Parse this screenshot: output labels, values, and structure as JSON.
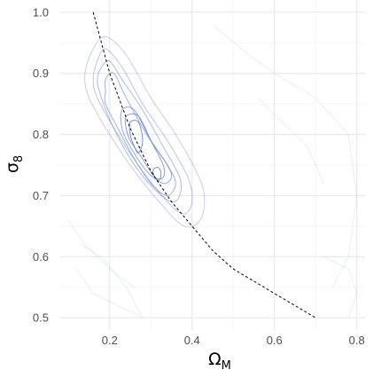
{
  "chart_data": {
    "type": "contour",
    "xlabel": "Ω",
    "xlabel_sub": "M",
    "ylabel": "σ",
    "ylabel_sub": "8",
    "xlim": [
      0.08,
      0.82
    ],
    "ylim": [
      0.48,
      1.02
    ],
    "xticks": [
      0.2,
      0.4,
      0.6,
      0.8
    ],
    "xtick_labels": [
      "0.2",
      "0.4",
      "0.6",
      "0.8"
    ],
    "yticks": [
      0.5,
      0.6,
      0.7,
      0.8,
      0.9,
      1.0
    ],
    "ytick_labels": [
      "0.5",
      "0.6",
      "0.7",
      "0.8",
      "0.9",
      "1.0"
    ],
    "grid": true,
    "colors": {
      "grid_major": "#ebebeb",
      "grid_minor": "#f5f5f5",
      "contour": "#6a85d6",
      "curve": "#000000"
    },
    "contours": [
      {
        "level": 1,
        "points": [
          [
            0.16,
            0.94
          ],
          [
            0.19,
            0.96
          ],
          [
            0.24,
            0.93
          ],
          [
            0.3,
            0.86
          ],
          [
            0.36,
            0.8
          ],
          [
            0.41,
            0.74
          ],
          [
            0.43,
            0.7
          ],
          [
            0.42,
            0.66
          ],
          [
            0.38,
            0.65
          ],
          [
            0.32,
            0.69
          ],
          [
            0.26,
            0.74
          ],
          [
            0.2,
            0.8
          ],
          [
            0.15,
            0.86
          ],
          [
            0.14,
            0.9
          ]
        ]
      },
      {
        "level": 2,
        "points": [
          [
            0.17,
            0.92
          ],
          [
            0.19,
            0.94
          ],
          [
            0.23,
            0.91
          ],
          [
            0.28,
            0.85
          ],
          [
            0.34,
            0.79
          ],
          [
            0.39,
            0.73
          ],
          [
            0.4,
            0.69
          ],
          [
            0.38,
            0.67
          ],
          [
            0.34,
            0.69
          ],
          [
            0.28,
            0.74
          ],
          [
            0.22,
            0.8
          ],
          [
            0.17,
            0.86
          ],
          [
            0.16,
            0.89
          ]
        ]
      },
      {
        "level": 3,
        "points": [
          [
            0.18,
            0.91
          ],
          [
            0.2,
            0.92
          ],
          [
            0.23,
            0.89
          ],
          [
            0.28,
            0.84
          ],
          [
            0.33,
            0.78
          ],
          [
            0.37,
            0.73
          ],
          [
            0.37,
            0.7
          ],
          [
            0.35,
            0.69
          ],
          [
            0.31,
            0.71
          ],
          [
            0.26,
            0.75
          ],
          [
            0.21,
            0.81
          ],
          [
            0.18,
            0.86
          ],
          [
            0.17,
            0.89
          ]
        ]
      },
      {
        "level": 4,
        "points": [
          [
            0.19,
            0.89
          ],
          [
            0.21,
            0.9
          ],
          [
            0.24,
            0.86
          ],
          [
            0.29,
            0.8
          ],
          [
            0.34,
            0.75
          ],
          [
            0.36,
            0.72
          ],
          [
            0.34,
            0.7
          ],
          [
            0.3,
            0.72
          ],
          [
            0.26,
            0.76
          ],
          [
            0.22,
            0.81
          ],
          [
            0.19,
            0.85
          ],
          [
            0.19,
            0.87
          ]
        ]
      },
      {
        "level": 5,
        "points": [
          [
            0.23,
            0.84
          ],
          [
            0.26,
            0.84
          ],
          [
            0.3,
            0.79
          ],
          [
            0.34,
            0.75
          ],
          [
            0.35,
            0.73
          ],
          [
            0.33,
            0.72
          ],
          [
            0.29,
            0.74
          ],
          [
            0.25,
            0.78
          ],
          [
            0.23,
            0.81
          ]
        ]
      },
      {
        "level": 6,
        "points": [
          [
            0.24,
            0.83
          ],
          [
            0.27,
            0.83
          ],
          [
            0.3,
            0.79
          ],
          [
            0.33,
            0.75
          ],
          [
            0.33,
            0.73
          ],
          [
            0.31,
            0.73
          ],
          [
            0.28,
            0.76
          ],
          [
            0.25,
            0.79
          ],
          [
            0.24,
            0.81
          ]
        ]
      },
      {
        "level": 7,
        "points": [
          [
            0.25,
            0.82
          ],
          [
            0.27,
            0.82
          ],
          [
            0.28,
            0.79
          ],
          [
            0.27,
            0.77
          ],
          [
            0.26,
            0.78
          ],
          [
            0.25,
            0.8
          ]
        ]
      },
      {
        "level": 7,
        "points": [
          [
            0.31,
            0.745
          ],
          [
            0.32,
            0.745
          ],
          [
            0.325,
            0.735
          ],
          [
            0.32,
            0.725
          ],
          [
            0.31,
            0.73
          ],
          [
            0.305,
            0.74
          ]
        ]
      }
    ],
    "background_contours": [
      {
        "points": [
          [
            0.12,
            0.58
          ],
          [
            0.16,
            0.54
          ],
          [
            0.22,
            0.52
          ],
          [
            0.28,
            0.5
          ],
          [
            0.24,
            0.55
          ],
          [
            0.18,
            0.6
          ],
          [
            0.13,
            0.62
          ]
        ]
      },
      {
        "points": [
          [
            0.45,
            0.98
          ],
          [
            0.52,
            0.94
          ],
          [
            0.6,
            0.9
          ],
          [
            0.7,
            0.86
          ],
          [
            0.78,
            0.8
          ],
          [
            0.8,
            0.7
          ],
          [
            0.78,
            0.6
          ],
          [
            0.74,
            0.55
          ]
        ]
      },
      {
        "points": [
          [
            0.56,
            0.86
          ],
          [
            0.62,
            0.82
          ],
          [
            0.68,
            0.78
          ],
          [
            0.72,
            0.72
          ]
        ]
      },
      {
        "points": [
          [
            0.72,
            0.6
          ],
          [
            0.78,
            0.58
          ],
          [
            0.8,
            0.54
          ],
          [
            0.78,
            0.5
          ]
        ]
      },
      {
        "points": [
          [
            0.1,
            0.66
          ],
          [
            0.14,
            0.62
          ],
          [
            0.2,
            0.58
          ],
          [
            0.26,
            0.55
          ]
        ]
      }
    ],
    "curve": {
      "type": "dashed",
      "x": [
        0.16,
        0.2,
        0.25,
        0.3,
        0.35,
        0.4,
        0.45,
        0.5,
        0.55,
        0.6,
        0.65,
        0.7
      ],
      "y": [
        1.0,
        0.9,
        0.81,
        0.74,
        0.69,
        0.65,
        0.61,
        0.58,
        0.56,
        0.54,
        0.52,
        0.5
      ]
    }
  }
}
